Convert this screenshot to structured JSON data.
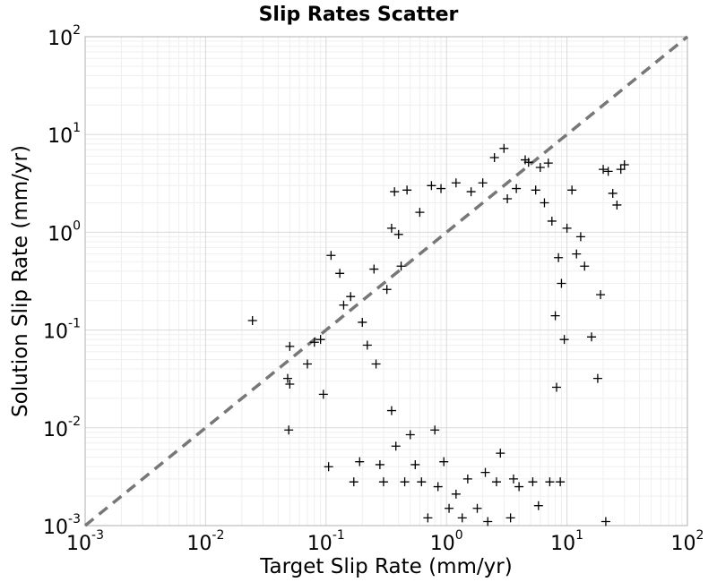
{
  "chart_data": {
    "type": "scatter",
    "title": "Slip Rates Scatter",
    "xlabel": "Target Slip Rate (mm/yr)",
    "ylabel": "Solution Slip Rate (mm/yr)",
    "xscale": "log",
    "yscale": "log",
    "xlim": [
      0.001,
      100
    ],
    "ylim": [
      0.001,
      100
    ],
    "grid": true,
    "marker": "+",
    "marker_color": "#000000",
    "reference_line": {
      "style": "dashed",
      "color": "#777777",
      "from": [
        0.001,
        0.001
      ],
      "to": [
        100,
        100
      ]
    },
    "x_ticks": [
      {
        "base": "10",
        "exp": "-3",
        "value": 0.001
      },
      {
        "base": "10",
        "exp": "-2",
        "value": 0.01
      },
      {
        "base": "10",
        "exp": "-1",
        "value": 0.1
      },
      {
        "base": "10",
        "exp": "0",
        "value": 1
      },
      {
        "base": "10",
        "exp": "1",
        "value": 10
      },
      {
        "base": "10",
        "exp": "2",
        "value": 100
      }
    ],
    "y_ticks": [
      {
        "base": "10",
        "exp": "-3",
        "value": 0.001
      },
      {
        "base": "10",
        "exp": "-2",
        "value": 0.01
      },
      {
        "base": "10",
        "exp": "-1",
        "value": 0.1
      },
      {
        "base": "10",
        "exp": "0",
        "value": 1
      },
      {
        "base": "10",
        "exp": "1",
        "value": 10
      },
      {
        "base": "10",
        "exp": "2",
        "value": 100
      }
    ],
    "points": [
      [
        0.0245,
        0.125
      ],
      [
        0.048,
        0.032
      ],
      [
        0.049,
        0.0095
      ],
      [
        0.05,
        0.068
      ],
      [
        0.05,
        0.028
      ],
      [
        0.07,
        0.045
      ],
      [
        0.08,
        0.075
      ],
      [
        0.09,
        0.08
      ],
      [
        0.095,
        0.022
      ],
      [
        0.105,
        0.004
      ],
      [
        0.11,
        0.58
      ],
      [
        0.13,
        0.38
      ],
      [
        0.14,
        0.18
      ],
      [
        0.16,
        0.22
      ],
      [
        0.17,
        0.0028
      ],
      [
        0.19,
        0.0045
      ],
      [
        0.2,
        0.12
      ],
      [
        0.22,
        0.07
      ],
      [
        0.25,
        0.42
      ],
      [
        0.26,
        0.045
      ],
      [
        0.28,
        0.0042
      ],
      [
        0.3,
        0.0028
      ],
      [
        0.32,
        0.26
      ],
      [
        0.35,
        1.1
      ],
      [
        0.35,
        0.015
      ],
      [
        0.37,
        2.6
      ],
      [
        0.38,
        0.0065
      ],
      [
        0.4,
        0.95
      ],
      [
        0.42,
        0.45
      ],
      [
        0.45,
        0.0028
      ],
      [
        0.47,
        2.7
      ],
      [
        0.5,
        0.0085
      ],
      [
        0.55,
        0.0042
      ],
      [
        0.6,
        1.6
      ],
      [
        0.62,
        0.0028
      ],
      [
        0.7,
        0.0012
      ],
      [
        0.75,
        3.0
      ],
      [
        0.8,
        0.0095
      ],
      [
        0.85,
        0.0025
      ],
      [
        0.9,
        2.8
      ],
      [
        0.95,
        0.0045
      ],
      [
        1.05,
        0.0015
      ],
      [
        1.2,
        3.2
      ],
      [
        1.2,
        0.0021
      ],
      [
        1.35,
        0.0012
      ],
      [
        1.5,
        0.003
      ],
      [
        1.6,
        2.6
      ],
      [
        1.8,
        0.0015
      ],
      [
        2.0,
        3.2
      ],
      [
        2.1,
        0.0035
      ],
      [
        2.2,
        0.0011
      ],
      [
        2.5,
        5.8
      ],
      [
        2.6,
        0.0028
      ],
      [
        2.8,
        0.0055
      ],
      [
        3.0,
        7.2
      ],
      [
        3.2,
        2.2
      ],
      [
        3.4,
        0.0012
      ],
      [
        3.6,
        0.003
      ],
      [
        3.8,
        2.8
      ],
      [
        4.0,
        0.0025
      ],
      [
        4.5,
        5.5
      ],
      [
        4.8,
        5.2
      ],
      [
        5.2,
        0.0028
      ],
      [
        5.5,
        2.7
      ],
      [
        5.8,
        0.0016
      ],
      [
        6.0,
        4.6
      ],
      [
        6.5,
        2.0
      ],
      [
        7.0,
        5.1
      ],
      [
        7.2,
        0.0028
      ],
      [
        7.5,
        1.3
      ],
      [
        8.0,
        0.14
      ],
      [
        8.2,
        0.026
      ],
      [
        8.5,
        0.55
      ],
      [
        8.8,
        0.0028
      ],
      [
        9.0,
        0.3
      ],
      [
        9.5,
        0.08
      ],
      [
        10.0,
        1.1
      ],
      [
        11.0,
        2.7
      ],
      [
        12.0,
        0.6
      ],
      [
        13.0,
        0.9
      ],
      [
        14.0,
        0.45
      ],
      [
        16.0,
        0.085
      ],
      [
        18.0,
        0.032
      ],
      [
        19.0,
        0.23
      ],
      [
        20.0,
        4.4
      ],
      [
        21.0,
        0.0011
      ],
      [
        22.0,
        4.2
      ],
      [
        24.0,
        2.5
      ],
      [
        26.0,
        1.9
      ],
      [
        28.0,
        4.4
      ],
      [
        30.0,
        4.9
      ]
    ]
  }
}
